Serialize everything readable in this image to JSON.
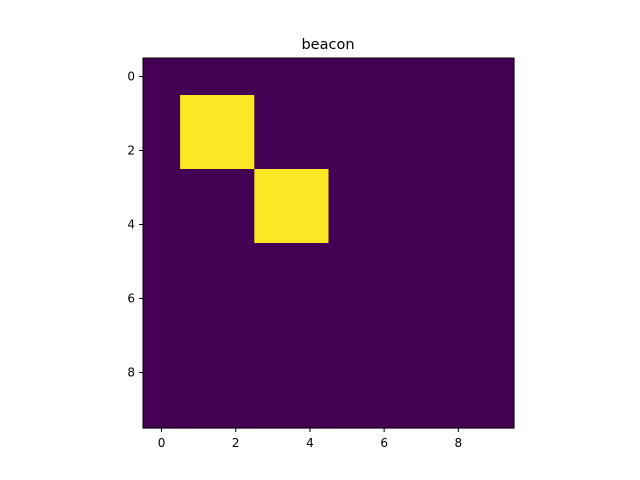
{
  "chart_data": {
    "type": "heatmap",
    "title": "beacon",
    "rows": 10,
    "cols": 10,
    "grid": false,
    "colormap": {
      "low": "#440154",
      "high": "#fde725"
    },
    "cells": [
      [
        0,
        0,
        0,
        0,
        0,
        0,
        0,
        0,
        0,
        0
      ],
      [
        0,
        1,
        1,
        0,
        0,
        0,
        0,
        0,
        0,
        0
      ],
      [
        0,
        1,
        1,
        0,
        0,
        0,
        0,
        0,
        0,
        0
      ],
      [
        0,
        0,
        0,
        1,
        1,
        0,
        0,
        0,
        0,
        0
      ],
      [
        0,
        0,
        0,
        1,
        1,
        0,
        0,
        0,
        0,
        0
      ],
      [
        0,
        0,
        0,
        0,
        0,
        0,
        0,
        0,
        0,
        0
      ],
      [
        0,
        0,
        0,
        0,
        0,
        0,
        0,
        0,
        0,
        0
      ],
      [
        0,
        0,
        0,
        0,
        0,
        0,
        0,
        0,
        0,
        0
      ],
      [
        0,
        0,
        0,
        0,
        0,
        0,
        0,
        0,
        0,
        0
      ],
      [
        0,
        0,
        0,
        0,
        0,
        0,
        0,
        0,
        0,
        0
      ]
    ],
    "xticks": [
      "0",
      "2",
      "4",
      "6",
      "8"
    ],
    "yticks": [
      "0",
      "2",
      "4",
      "6",
      "8"
    ],
    "xlim": [
      -0.5,
      9.5
    ],
    "ylim": [
      -0.5,
      9.5
    ]
  }
}
